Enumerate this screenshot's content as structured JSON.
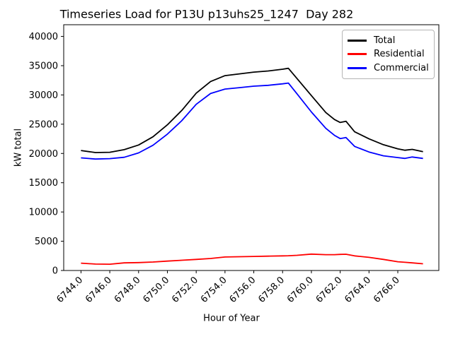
{
  "chart_data": {
    "type": "line",
    "title": "Timeseries Load for P13U p13uhs25_1247  Day 282",
    "xlabel": "Hour of Year",
    "ylabel": "kW total",
    "grid": false,
    "xlim": [
      6742.8,
      6768.85
    ],
    "ylim": [
      0,
      42000
    ],
    "xticks": [
      6744,
      6746,
      6748,
      6750,
      6752,
      6754,
      6756,
      6758,
      6760,
      6762,
      6764,
      6766
    ],
    "xtick_labels": [
      "6744.0",
      "6746.0",
      "6748.0",
      "6750.0",
      "6752.0",
      "6754.0",
      "6756.0",
      "6758.0",
      "6760.0",
      "6762.0",
      "6764.0",
      "6766.0"
    ],
    "yticks": [
      0,
      5000,
      10000,
      15000,
      20000,
      25000,
      30000,
      35000,
      40000
    ],
    "ytick_labels": [
      "0",
      "5000",
      "10000",
      "15000",
      "20000",
      "25000",
      "30000",
      "35000",
      "40000"
    ],
    "x": [
      6744,
      6745,
      6746,
      6747,
      6748,
      6749,
      6750,
      6751,
      6752,
      6753,
      6754,
      6755,
      6756,
      6757,
      6758,
      6758.4,
      6759,
      6760,
      6761,
      6761.6,
      6762,
      6762.4,
      6763,
      6764,
      6765,
      6766,
      6766.5,
      6767,
      6767.75
    ],
    "series": [
      {
        "name": "Total",
        "color": "#000000",
        "values": [
          20500,
          20150,
          20200,
          20650,
          21450,
          22850,
          24900,
          27350,
          30300,
          32300,
          33300,
          33600,
          33900,
          34100,
          34400,
          34550,
          32800,
          29900,
          27000,
          25800,
          25300,
          25500,
          23700,
          22500,
          21500,
          20800,
          20550,
          20700,
          20300
        ]
      },
      {
        "name": "Residential",
        "color": "#ff0000",
        "values": [
          1250,
          1100,
          1080,
          1300,
          1350,
          1450,
          1600,
          1750,
          1900,
          2050,
          2300,
          2350,
          2400,
          2450,
          2500,
          2520,
          2600,
          2800,
          2700,
          2700,
          2750,
          2780,
          2500,
          2250,
          1900,
          1500,
          1400,
          1300,
          1150
        ]
      },
      {
        "name": "Commercial",
        "color": "#0000ff",
        "values": [
          19250,
          19050,
          19120,
          19350,
          20100,
          21400,
          23300,
          25600,
          28400,
          30250,
          31000,
          31250,
          31500,
          31650,
          31900,
          32030,
          30200,
          27100,
          24300,
          23100,
          22550,
          22720,
          21200,
          20250,
          19600,
          19300,
          19150,
          19400,
          19150
        ]
      }
    ],
    "legend": {
      "position": "upper right",
      "entries": [
        "Total",
        "Residential",
        "Commercial"
      ]
    }
  }
}
